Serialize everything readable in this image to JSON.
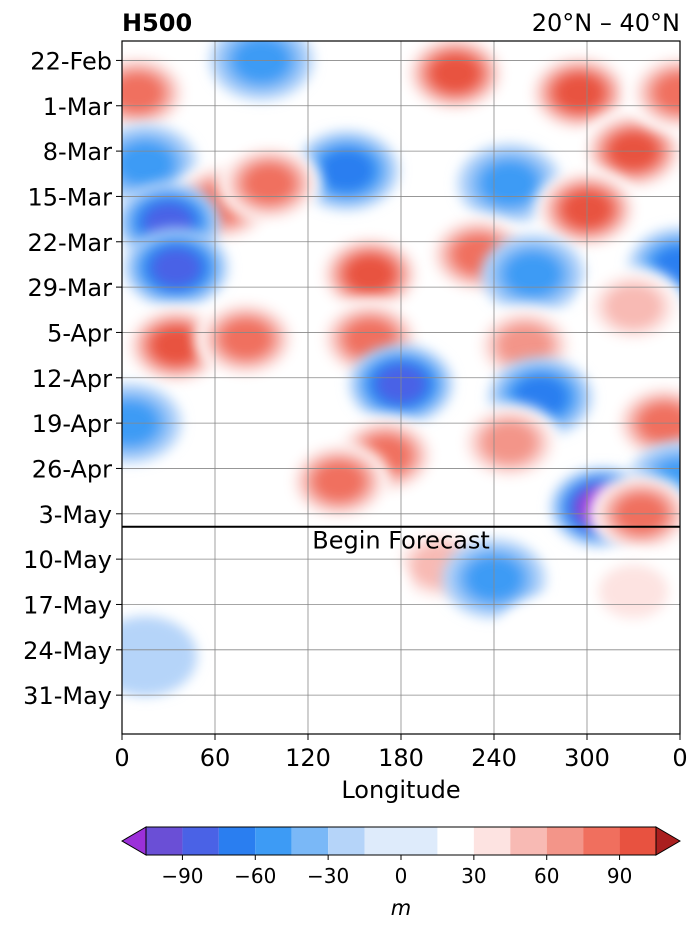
{
  "chart_data": {
    "type": "heatmap",
    "title": "H500",
    "subtitle": "20°N – 40°N",
    "xlabel": "Longitude",
    "ylabel": "",
    "x_ticks": [
      "0",
      "60",
      "120",
      "180",
      "240",
      "300",
      "0"
    ],
    "y_ticks": [
      "22-Feb",
      "1-Mar",
      "8-Mar",
      "15-Mar",
      "22-Mar",
      "29-Mar",
      "5-Apr",
      "12-Apr",
      "19-Apr",
      "26-Apr",
      "3-May",
      "10-May",
      "17-May",
      "24-May",
      "31-May"
    ],
    "xlim": [
      0,
      360
    ],
    "ylim": [
      "19-Feb",
      "6-Jun"
    ],
    "grid": true,
    "forecast_line": {
      "date": "5-May",
      "label": "Begin Forecast"
    },
    "colorbar": {
      "label": "m",
      "ticks": [
        "−90",
        "−60",
        "−30",
        "0",
        "30",
        "60",
        "90"
      ],
      "levels": [
        -105,
        -90,
        -75,
        -60,
        -45,
        -30,
        -15,
        15,
        30,
        45,
        60,
        75,
        90,
        105
      ],
      "colors": [
        "#9b30d9",
        "#6a4fd6",
        "#4a62e6",
        "#2a7ef0",
        "#3d9bf5",
        "#7ab8f7",
        "#b5d4f9",
        "#deebfb",
        "#ffffff",
        "#fde3e1",
        "#f8bab4",
        "#f39589",
        "#f06f5e",
        "#e85240",
        "#d63b2c",
        "#c22d24",
        "#aa1f1f"
      ],
      "extend": "both"
    },
    "anomalies": [
      {
        "lon": 10,
        "date": "27-Feb",
        "value": 70
      },
      {
        "lon": 90,
        "date": "22-Feb",
        "value": -45
      },
      {
        "lon": 215,
        "date": "24-Feb",
        "value": 85
      },
      {
        "lon": 295,
        "date": "27-Feb",
        "value": 95
      },
      {
        "lon": 330,
        "date": "8-Mar",
        "value": 90
      },
      {
        "lon": 360,
        "date": "27-Feb",
        "value": 70
      },
      {
        "lon": 15,
        "date": "10-Mar",
        "value": -40
      },
      {
        "lon": 145,
        "date": "11-Mar",
        "value": -60
      },
      {
        "lon": 250,
        "date": "13-Mar",
        "value": -50
      },
      {
        "lon": 65,
        "date": "16-Mar",
        "value": 80
      },
      {
        "lon": 95,
        "date": "13-Mar",
        "value": 75
      },
      {
        "lon": 30,
        "date": "19-Mar",
        "value": -75
      },
      {
        "lon": 35,
        "date": "26-Mar",
        "value": -70
      },
      {
        "lon": 300,
        "date": "17-Mar",
        "value": 90
      },
      {
        "lon": 230,
        "date": "24-Mar",
        "value": 80
      },
      {
        "lon": 160,
        "date": "27-Mar",
        "value": 90
      },
      {
        "lon": 360,
        "date": "26-Mar",
        "value": -60
      },
      {
        "lon": 265,
        "date": "27-Mar",
        "value": -40
      },
      {
        "lon": 35,
        "date": "7-Apr",
        "value": 95
      },
      {
        "lon": 80,
        "date": "6-Apr",
        "value": 80
      },
      {
        "lon": 160,
        "date": "6-Apr",
        "value": 75
      },
      {
        "lon": 260,
        "date": "7-Apr",
        "value": 60
      },
      {
        "lon": 330,
        "date": "1-Apr",
        "value": 45
      },
      {
        "lon": 180,
        "date": "13-Apr",
        "value": -70
      },
      {
        "lon": 270,
        "date": "15-Apr",
        "value": -60
      },
      {
        "lon": 5,
        "date": "19-Apr",
        "value": -50
      },
      {
        "lon": 350,
        "date": "19-Apr",
        "value": 70
      },
      {
        "lon": 170,
        "date": "24-Apr",
        "value": 80
      },
      {
        "lon": 250,
        "date": "22-Apr",
        "value": 65
      },
      {
        "lon": 140,
        "date": "28-Apr",
        "value": 75
      },
      {
        "lon": 310,
        "date": "2-May",
        "value": -105
      },
      {
        "lon": 360,
        "date": "28-Apr",
        "value": -50
      },
      {
        "lon": 335,
        "date": "3-May",
        "value": 75
      },
      {
        "lon": 205,
        "date": "11-May",
        "value": 45
      },
      {
        "lon": 240,
        "date": "13-May",
        "value": -45
      },
      {
        "lon": 330,
        "date": "15-May",
        "value": 30
      },
      {
        "lon": 275,
        "date": "22-May",
        "value": 20
      },
      {
        "lon": 150,
        "date": "14-May",
        "value": 15
      },
      {
        "lon": 15,
        "date": "25-May",
        "value": -15
      }
    ]
  }
}
